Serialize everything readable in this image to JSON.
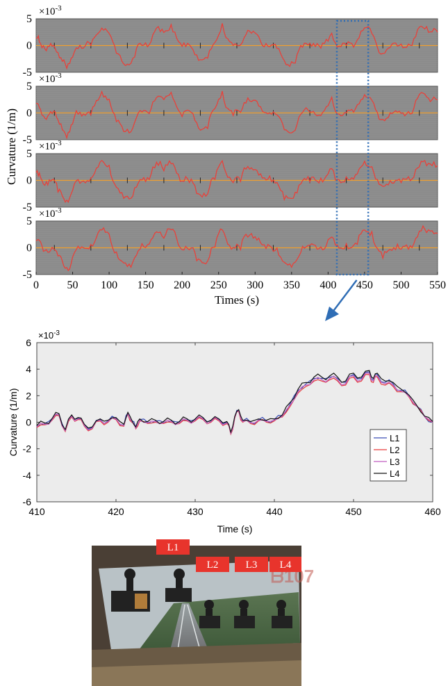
{
  "chart_data": [
    {
      "type": "line",
      "panels": 4,
      "exponent_label": "×10",
      "exponent_power": "-3",
      "ylabel": "Curvature (1/m)",
      "xlabel": "Times (s)",
      "xlim": [
        0,
        550
      ],
      "ylim": [
        -5,
        5
      ],
      "xticks": [
        "0",
        "50",
        "100",
        "150",
        "200",
        "250",
        "300",
        "350",
        "400",
        "450",
        "500",
        "550"
      ],
      "yticks": [
        "5",
        "0",
        "-5"
      ],
      "highlight_range": [
        412,
        455
      ],
      "series_color": "#e8413a",
      "background_color": "#8a8a8a",
      "centerline_color": "#f0a030",
      "series": {
        "x": [
          0,
          3,
          6,
          10,
          14,
          18,
          22,
          26,
          30,
          34,
          38,
          42,
          46,
          50,
          55,
          60,
          65,
          70,
          75,
          80,
          85,
          90,
          95,
          100,
          105,
          110,
          115,
          120,
          125,
          130,
          135,
          140,
          145,
          150,
          155,
          160,
          165,
          170,
          175,
          180,
          185,
          190,
          195,
          200,
          205,
          210,
          215,
          220,
          225,
          230,
          235,
          240,
          245,
          250,
          255,
          260,
          265,
          270,
          275,
          280,
          285,
          290,
          295,
          300,
          305,
          310,
          315,
          320,
          325,
          330,
          335,
          340,
          345,
          350,
          355,
          360,
          365,
          370,
          375,
          380,
          385,
          390,
          395,
          400,
          405,
          410,
          415,
          420,
          425,
          430,
          435,
          440,
          445,
          450,
          455,
          460,
          465,
          470,
          475,
          480,
          485,
          490,
          495,
          500,
          505,
          510,
          515,
          520,
          525,
          530,
          535,
          540,
          545,
          550
        ],
        "values": [
          1.3,
          1.5,
          0.5,
          -0.5,
          -0.6,
          -0.3,
          0.2,
          -0.4,
          -1.5,
          -2.2,
          -3.2,
          -4.0,
          -3.6,
          -1.8,
          -0.3,
          0.0,
          -0.3,
          0.2,
          0.2,
          1.2,
          2.6,
          3.4,
          3.2,
          2.5,
          0.3,
          -1.3,
          -2.3,
          -3.2,
          -3.4,
          -3.2,
          -1.8,
          -0.1,
          0.2,
          0.0,
          0.3,
          2.0,
          3.4,
          3.0,
          2.2,
          3.0,
          3.4,
          2.6,
          0.6,
          -0.1,
          0.2,
          0.0,
          -0.4,
          -2.2,
          -2.6,
          -2.8,
          -2.4,
          -0.3,
          0.5,
          2.4,
          3.8,
          1.6,
          0.4,
          -0.1,
          0.3,
          0.0,
          2.0,
          2.6,
          2.5,
          2.0,
          1.5,
          0.1,
          0.2,
          0.3,
          0.0,
          -0.2,
          -1.8,
          -3.0,
          -3.6,
          -3.3,
          -2.8,
          -1.0,
          0.1,
          0.2,
          0.3,
          0.3,
          0.0,
          -0.1,
          0.2,
          1.3,
          2.2,
          0.5,
          -0.2,
          0.0,
          0.3,
          0.2,
          0.2,
          1.0,
          2.8,
          3.3,
          3.1,
          2.4,
          0.4,
          -0.9,
          -1.5,
          -0.6,
          -0.3,
          0.1,
          0.0,
          -0.2,
          0.0,
          0.2,
          0.3,
          1.8,
          3.2,
          3.5,
          3.0,
          2.8,
          3.0,
          2.8
        ]
      }
    },
    {
      "type": "line",
      "exponent_label": "×10",
      "exponent_power": "-3",
      "ylabel": "Curvature (1/m)",
      "xlabel": "Time (s)",
      "xlim": [
        410,
        460
      ],
      "ylim": [
        -6,
        6
      ],
      "xticks": [
        "410",
        "420",
        "430",
        "440",
        "450",
        "460"
      ],
      "yticks": [
        "6",
        "4",
        "2",
        "0",
        "-2",
        "-4",
        "-6"
      ],
      "legend_position": "lower-right",
      "x": [
        410,
        411,
        412,
        412.8,
        413.6,
        414.4,
        415.2,
        416,
        417,
        418,
        419,
        420,
        421,
        421.5,
        422,
        422.5,
        423,
        424,
        425,
        426,
        427,
        428,
        429,
        430,
        431,
        432,
        433,
        434,
        434.5,
        435,
        435.5,
        436,
        437,
        438,
        439,
        440,
        441,
        442,
        443,
        444,
        445,
        446,
        447,
        448,
        449,
        450,
        451,
        452,
        452.5,
        453,
        454,
        455,
        456,
        457,
        458,
        459,
        460
      ],
      "series": [
        {
          "name": "L1",
          "color": "#3a4db5",
          "values": [
            -0.3,
            -0.1,
            0.3,
            0.6,
            -0.6,
            0.5,
            0.3,
            -0.2,
            -0.4,
            0.2,
            0.1,
            0.3,
            -0.2,
            0.7,
            0.1,
            -0.4,
            0.2,
            0.0,
            0.1,
            0.0,
            0.1,
            0.0,
            0.2,
            0.2,
            0.3,
            0.1,
            0.2,
            0.0,
            -0.8,
            0.4,
            0.9,
            0.1,
            0.0,
            0.2,
            0.1,
            0.2,
            0.5,
            1.4,
            2.4,
            2.9,
            3.3,
            3.3,
            3.4,
            3.3,
            3.0,
            3.6,
            3.3,
            3.8,
            3.2,
            3.6,
            3.0,
            2.9,
            2.4,
            2.0,
            1.2,
            0.4,
            0.0
          ]
        },
        {
          "name": "L2",
          "color": "#e63b3b",
          "values": [
            -0.4,
            -0.2,
            0.2,
            0.5,
            -0.7,
            0.4,
            0.2,
            -0.3,
            -0.5,
            0.1,
            0.0,
            0.2,
            -0.3,
            0.6,
            0.0,
            -0.5,
            0.1,
            -0.1,
            0.0,
            -0.1,
            0.0,
            -0.1,
            0.1,
            0.1,
            0.2,
            0.0,
            0.1,
            -0.1,
            -0.9,
            0.3,
            0.8,
            0.0,
            -0.1,
            0.1,
            0.0,
            0.1,
            0.4,
            1.2,
            2.2,
            2.7,
            3.1,
            3.1,
            3.2,
            3.1,
            2.8,
            3.4,
            3.1,
            3.6,
            3.0,
            3.4,
            2.8,
            2.7,
            2.3,
            1.9,
            1.2,
            0.4,
            0.0
          ]
        },
        {
          "name": "L3",
          "color": "#c05ec0",
          "values": [
            -0.35,
            -0.15,
            0.25,
            0.55,
            -0.65,
            0.45,
            0.25,
            -0.25,
            -0.45,
            0.15,
            0.05,
            0.25,
            -0.25,
            0.65,
            0.05,
            -0.45,
            0.15,
            -0.05,
            0.05,
            -0.05,
            0.05,
            -0.05,
            0.15,
            0.15,
            0.25,
            0.05,
            0.15,
            -0.05,
            -0.85,
            0.35,
            0.85,
            0.05,
            -0.05,
            0.15,
            0.05,
            0.15,
            0.45,
            1.3,
            2.3,
            2.8,
            3.2,
            3.2,
            3.3,
            3.2,
            2.9,
            3.5,
            3.2,
            3.7,
            3.1,
            3.5,
            2.9,
            2.8,
            2.35,
            1.95,
            1.2,
            0.4,
            0.0
          ]
        },
        {
          "name": "L4",
          "color": "#111111",
          "values": [
            -0.25,
            -0.05,
            0.35,
            0.65,
            -0.55,
            0.55,
            0.35,
            -0.15,
            -0.35,
            0.25,
            0.15,
            0.35,
            -0.15,
            0.75,
            0.15,
            -0.35,
            0.25,
            0.05,
            0.15,
            0.05,
            0.15,
            0.05,
            0.25,
            0.25,
            0.35,
            0.15,
            0.25,
            0.05,
            -0.75,
            0.45,
            0.95,
            0.15,
            0.05,
            0.25,
            0.15,
            0.25,
            0.55,
            1.5,
            2.5,
            3.0,
            3.4,
            3.4,
            3.5,
            3.4,
            3.1,
            3.7,
            3.4,
            3.9,
            3.3,
            3.7,
            3.1,
            3.0,
            2.5,
            2.05,
            1.25,
            0.45,
            0.05
          ]
        }
      ]
    }
  ],
  "photo": {
    "labels": [
      "L1",
      "L2",
      "L3",
      "L4"
    ],
    "label_color": "#e8342c"
  }
}
